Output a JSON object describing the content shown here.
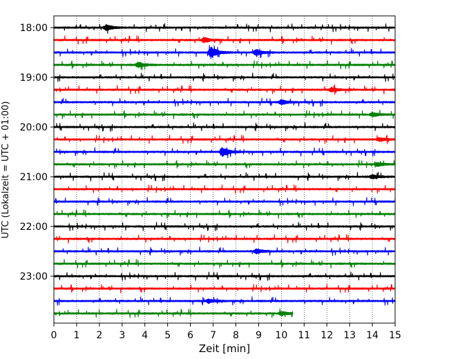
{
  "chart_data": {
    "type": "line",
    "subtype": "helicorder-seismogram",
    "title": "",
    "xlabel": "Zeit  [min]",
    "ylabel": "UTC (Lokalzeit = UTC + 01:00)",
    "xlim": [
      0,
      15
    ],
    "x_ticks": [
      0,
      1,
      2,
      3,
      4,
      5,
      6,
      7,
      8,
      9,
      10,
      11,
      12,
      13,
      14,
      15
    ],
    "x_tick_labels": [
      "0",
      "1",
      "2",
      "3",
      "4",
      "5",
      "6",
      "7",
      "8",
      "9",
      "10",
      "11",
      "12",
      "13",
      "14",
      "15"
    ],
    "y_ticks": [
      "18:00",
      "19:00",
      "20:00",
      "21:00",
      "22:00",
      "23:00"
    ],
    "grid": "vertical dotted lines at each minute",
    "trace_minutes": 15,
    "traces_per_hour": 4,
    "color_cycle": [
      "#000000",
      "#ff0000",
      "#0000ff",
      "#008000"
    ],
    "series": [
      {
        "start": "18:00",
        "color": "#000000",
        "end_min": 15,
        "events": [
          {
            "t": 2.3,
            "amp": 0.5
          }
        ]
      },
      {
        "start": "18:15",
        "color": "#ff0000",
        "end_min": 15,
        "events": [
          {
            "t": 6.6,
            "amp": 0.45
          }
        ]
      },
      {
        "start": "18:30",
        "color": "#0000ff",
        "end_min": 15,
        "events": [
          {
            "t": 6.9,
            "amp": 1.0
          },
          {
            "t": 8.9,
            "amp": 0.5
          }
        ]
      },
      {
        "start": "18:45",
        "color": "#008000",
        "end_min": 15,
        "events": [
          {
            "t": 3.7,
            "amp": 0.45
          }
        ]
      },
      {
        "start": "19:00",
        "color": "#000000",
        "end_min": 15,
        "events": []
      },
      {
        "start": "19:15",
        "color": "#ff0000",
        "end_min": 15,
        "events": [
          {
            "t": 12.2,
            "amp": 0.35
          }
        ]
      },
      {
        "start": "19:30",
        "color": "#0000ff",
        "end_min": 15,
        "events": [
          {
            "t": 10.0,
            "amp": 0.4
          }
        ]
      },
      {
        "start": "19:45",
        "color": "#008000",
        "end_min": 15,
        "events": [
          {
            "t": 14.0,
            "amp": 0.35
          }
        ]
      },
      {
        "start": "20:00",
        "color": "#000000",
        "end_min": 15,
        "events": []
      },
      {
        "start": "20:15",
        "color": "#ff0000",
        "end_min": 15,
        "events": [
          {
            "t": 14.3,
            "amp": 0.3
          }
        ]
      },
      {
        "start": "20:30",
        "color": "#0000ff",
        "end_min": 15,
        "events": [
          {
            "t": 7.4,
            "amp": 0.9
          }
        ]
      },
      {
        "start": "20:45",
        "color": "#008000",
        "end_min": 15,
        "events": [
          {
            "t": 14.2,
            "amp": 0.35
          }
        ]
      },
      {
        "start": "21:00",
        "color": "#000000",
        "end_min": 15,
        "events": [
          {
            "t": 14.0,
            "amp": 0.35
          }
        ]
      },
      {
        "start": "21:15",
        "color": "#ff0000",
        "end_min": 15,
        "events": []
      },
      {
        "start": "21:30",
        "color": "#0000ff",
        "end_min": 15,
        "events": []
      },
      {
        "start": "21:45",
        "color": "#008000",
        "end_min": 15,
        "events": []
      },
      {
        "start": "22:00",
        "color": "#000000",
        "end_min": 15,
        "events": []
      },
      {
        "start": "22:15",
        "color": "#ff0000",
        "end_min": 15,
        "events": []
      },
      {
        "start": "22:30",
        "color": "#0000ff",
        "end_min": 15,
        "events": [
          {
            "t": 8.9,
            "amp": 0.4
          }
        ]
      },
      {
        "start": "22:45",
        "color": "#008000",
        "end_min": 15,
        "events": []
      },
      {
        "start": "23:00",
        "color": "#000000",
        "end_min": 15,
        "events": []
      },
      {
        "start": "23:15",
        "color": "#ff0000",
        "end_min": 15,
        "events": []
      },
      {
        "start": "23:30",
        "color": "#0000ff",
        "end_min": 15,
        "events": [
          {
            "t": 6.8,
            "amp": 0.35
          }
        ]
      },
      {
        "start": "23:45",
        "color": "#008000",
        "end_min": 10.5,
        "events": [
          {
            "t": 10.0,
            "amp": 0.35
          }
        ]
      }
    ]
  }
}
